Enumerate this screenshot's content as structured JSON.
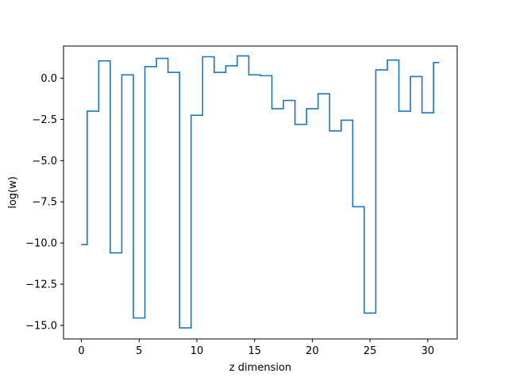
{
  "chart_data": {
    "type": "line",
    "drawstyle": "steps-mid",
    "title": "",
    "xlabel": "z dimension",
    "ylabel": "log(w)",
    "xlim": [
      -1.55,
      32.55
    ],
    "ylim": [
      -15.82,
      1.95
    ],
    "xticks": [
      0,
      5,
      10,
      15,
      20,
      25,
      30
    ],
    "yticks": [
      0.0,
      -2.5,
      -5.0,
      -7.5,
      -10.0,
      -12.5,
      -15.0
    ],
    "ytick_labels": [
      "0.0",
      "−2.5",
      "−5.0",
      "−7.5",
      "−10.0",
      "−12.5",
      "−15.0"
    ],
    "grid": false,
    "series": [
      {
        "color": "#1f77b4",
        "x": [
          0,
          1,
          2,
          3,
          4,
          5,
          6,
          7,
          8,
          9,
          10,
          11,
          12,
          13,
          14,
          15,
          16,
          17,
          18,
          19,
          20,
          21,
          22,
          23,
          24,
          25,
          26,
          27,
          28,
          29,
          30,
          31
        ],
        "values": [
          -10.1,
          -2.0,
          1.05,
          -10.6,
          0.2,
          -14.55,
          0.7,
          1.2,
          0.35,
          -15.15,
          -2.25,
          1.3,
          0.35,
          0.75,
          1.35,
          0.2,
          0.15,
          -1.85,
          -1.35,
          -2.8,
          -1.85,
          -0.95,
          -3.2,
          -2.55,
          -7.8,
          -14.25,
          0.5,
          1.1,
          -2.0,
          0.1,
          -2.1,
          0.95
        ]
      }
    ]
  }
}
